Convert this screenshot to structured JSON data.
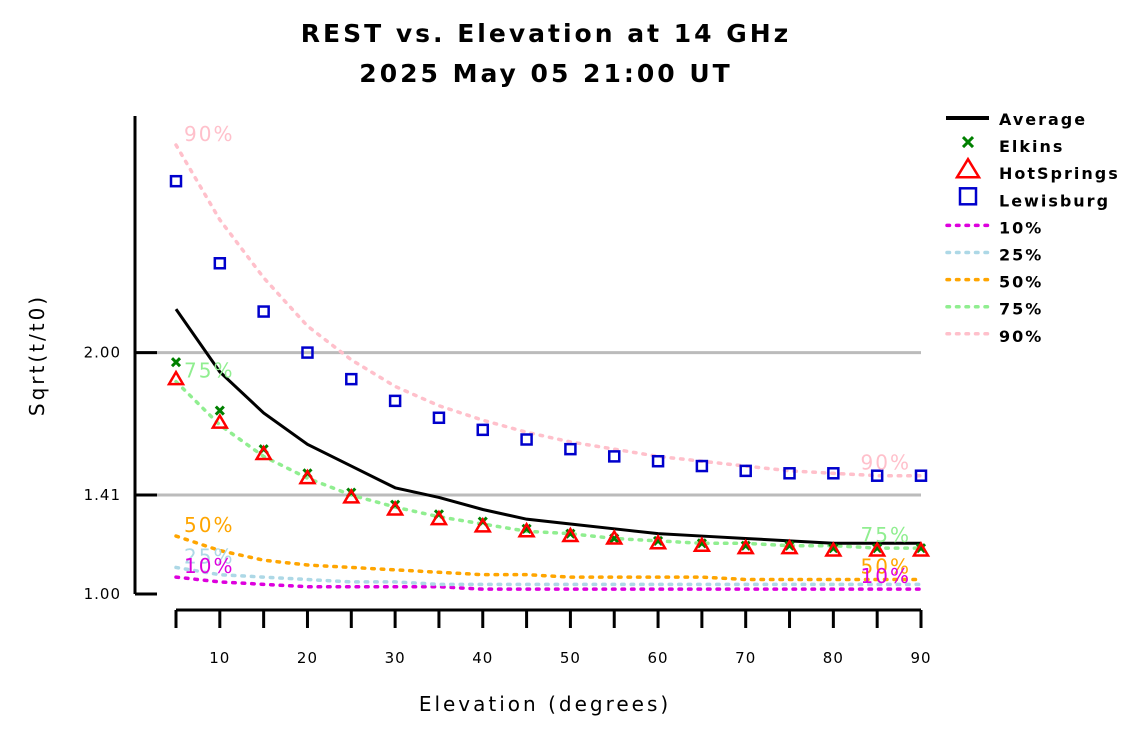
{
  "chart_data": {
    "type": "line",
    "title": "REST vs. Elevation at 14 GHz",
    "subtitle": "2025 May 05 21:00 UT",
    "xlabel": "Elevation (degrees)",
    "ylabel": "Sqrt(t/t0)",
    "xlim": [
      5,
      90
    ],
    "ylim": [
      1.0,
      2.98
    ],
    "x_ticks": [
      "10",
      "20",
      "30",
      "40",
      "50",
      "60",
      "70",
      "80",
      "90"
    ],
    "x_tick_values": [
      10,
      20,
      30,
      40,
      50,
      60,
      70,
      80,
      90
    ],
    "y_ticks": [
      "1.00",
      "1.41",
      "2.00"
    ],
    "y_tick_values": [
      1.0,
      1.41,
      2.0
    ],
    "grid": "horizontal lines at 1.41 and 2.00",
    "legend_position": "right",
    "x": [
      5,
      10,
      15,
      20,
      25,
      30,
      35,
      40,
      45,
      50,
      55,
      60,
      65,
      70,
      75,
      80,
      85,
      90
    ],
    "series": [
      {
        "name": "Average",
        "style": "line",
        "color": "#000000",
        "values": [
          2.18,
          1.92,
          1.75,
          1.62,
          1.53,
          1.44,
          1.4,
          1.35,
          1.31,
          1.29,
          1.27,
          1.25,
          1.24,
          1.23,
          1.22,
          1.21,
          1.21,
          1.21
        ]
      },
      {
        "name": "Elkins",
        "style": "x",
        "color": "#008000",
        "values": [
          1.96,
          1.76,
          1.6,
          1.5,
          1.42,
          1.37,
          1.33,
          1.3,
          1.27,
          1.25,
          1.23,
          1.22,
          1.21,
          1.2,
          1.2,
          1.19,
          1.19,
          1.19
        ]
      },
      {
        "name": "HotSprings",
        "style": "triangle",
        "color": "#ff0000",
        "values": [
          1.89,
          1.71,
          1.58,
          1.48,
          1.4,
          1.35,
          1.31,
          1.28,
          1.26,
          1.24,
          1.23,
          1.21,
          1.2,
          1.19,
          1.19,
          1.18,
          1.18,
          1.18
        ]
      },
      {
        "name": "Lewisburg",
        "style": "square",
        "color": "#0000cc",
        "values": [
          2.71,
          2.37,
          2.17,
          2.0,
          1.89,
          1.8,
          1.73,
          1.68,
          1.64,
          1.6,
          1.57,
          1.55,
          1.53,
          1.51,
          1.5,
          1.5,
          1.49,
          1.49
        ]
      },
      {
        "name": "10%",
        "style": "dotted",
        "color": "#dd00dd",
        "values": [
          1.07,
          1.05,
          1.04,
          1.03,
          1.03,
          1.03,
          1.03,
          1.02,
          1.02,
          1.02,
          1.02,
          1.02,
          1.02,
          1.02,
          1.02,
          1.02,
          1.02,
          1.02
        ]
      },
      {
        "name": "25%",
        "style": "dotted",
        "color": "#add8e6",
        "values": [
          1.11,
          1.08,
          1.07,
          1.06,
          1.05,
          1.05,
          1.04,
          1.04,
          1.04,
          1.04,
          1.04,
          1.04,
          1.04,
          1.04,
          1.04,
          1.04,
          1.04,
          1.04
        ]
      },
      {
        "name": "50%",
        "style": "dotted",
        "color": "#ffa500",
        "values": [
          1.24,
          1.18,
          1.14,
          1.12,
          1.11,
          1.1,
          1.09,
          1.08,
          1.08,
          1.07,
          1.07,
          1.07,
          1.07,
          1.06,
          1.06,
          1.06,
          1.06,
          1.06
        ]
      },
      {
        "name": "75%",
        "style": "dotted",
        "color": "#90ee90",
        "values": [
          1.88,
          1.7,
          1.57,
          1.48,
          1.41,
          1.36,
          1.32,
          1.29,
          1.26,
          1.25,
          1.23,
          1.22,
          1.21,
          1.21,
          1.2,
          1.2,
          1.19,
          1.19
        ]
      },
      {
        "name": "90%",
        "style": "dotted",
        "color": "#ffc0cb",
        "values": [
          2.86,
          2.55,
          2.31,
          2.11,
          1.97,
          1.86,
          1.78,
          1.72,
          1.67,
          1.63,
          1.6,
          1.57,
          1.55,
          1.53,
          1.51,
          1.5,
          1.49,
          1.49
        ]
      }
    ],
    "annotations": [
      {
        "text": "90%",
        "series": "90%",
        "side": "start",
        "color": "#ffc0cb"
      },
      {
        "text": "75%",
        "series": "75%",
        "side": "start",
        "color": "#90ee90"
      },
      {
        "text": "50%",
        "series": "50%",
        "side": "start",
        "color": "#ffa500"
      },
      {
        "text": "25%",
        "series": "25%",
        "side": "start",
        "color": "#add8e6"
      },
      {
        "text": "10%",
        "series": "10%",
        "side": "start",
        "color": "#dd00dd"
      },
      {
        "text": "90%",
        "series": "90%",
        "side": "end",
        "color": "#ffc0cb"
      },
      {
        "text": "75%",
        "series": "75%",
        "side": "end",
        "color": "#90ee90"
      },
      {
        "text": "50%",
        "series": "50%",
        "side": "end",
        "color": "#ffa500"
      },
      {
        "text": "10%",
        "series": "10%",
        "side": "end",
        "color": "#dd00dd"
      }
    ]
  }
}
